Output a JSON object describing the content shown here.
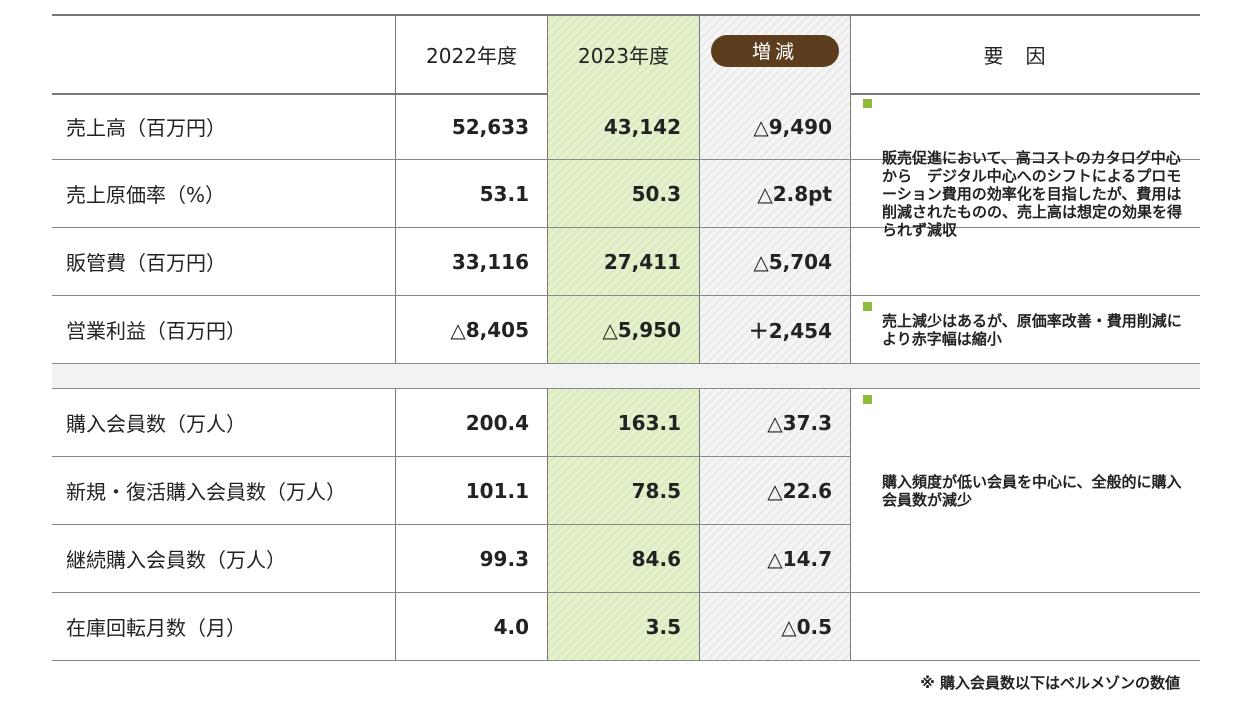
{
  "header": {
    "label": "",
    "year_2022": "2022年度",
    "year_2023": "2023年度",
    "diff": "増減",
    "reason": "要因"
  },
  "group1": [
    {
      "label": "売上高（百万円）",
      "v2022": "52,633",
      "v2023": "43,142",
      "diff": "△9,490"
    },
    {
      "label": "売上原価率（%）",
      "v2022": "53.1",
      "v2023": "50.3",
      "diff": "△2.8pt"
    },
    {
      "label": "販管費（百万円）",
      "v2022": "33,116",
      "v2023": "27,411",
      "diff": "△5,704"
    },
    {
      "label": "営業利益（百万円）",
      "v2022": "△8,405",
      "v2023": "△5,950",
      "diff": "＋2,454"
    }
  ],
  "group2": [
    {
      "label": "購入会員数（万人）",
      "v2022": "200.4",
      "v2023": "163.1",
      "diff": "△37.3"
    },
    {
      "label": "新規・復活購入会員数（万人）",
      "v2022": "101.1",
      "v2023": "78.5",
      "diff": "△22.6"
    },
    {
      "label": "継続購入会員数（万人）",
      "v2022": "99.3",
      "v2023": "84.6",
      "diff": "△14.7"
    },
    {
      "label": "在庫回転月数（月）",
      "v2022": "4.0",
      "v2023": "3.5",
      "diff": "△0.5"
    }
  ],
  "reasons": {
    "sales": "販売促進において、高コストのカタログ中心から　デジタル中心へのシフトによるプロモーション費用の効率化を目指したが、費用は削減されたものの、売上高は想定の効果を得られず減収",
    "profit": "売上減少はあるが、原価率改善・費用削減により赤字幅は縮小",
    "members": "購入頻度が低い会員を中心に、全般的に購入会員数が減少"
  },
  "footnote": "※ 購入会員数以下はベルメゾンの数値",
  "colors": {
    "pill_bg": "#5c3d1e",
    "bullet": "#8dbb3c",
    "highlight_2023": "#e3efcb"
  }
}
